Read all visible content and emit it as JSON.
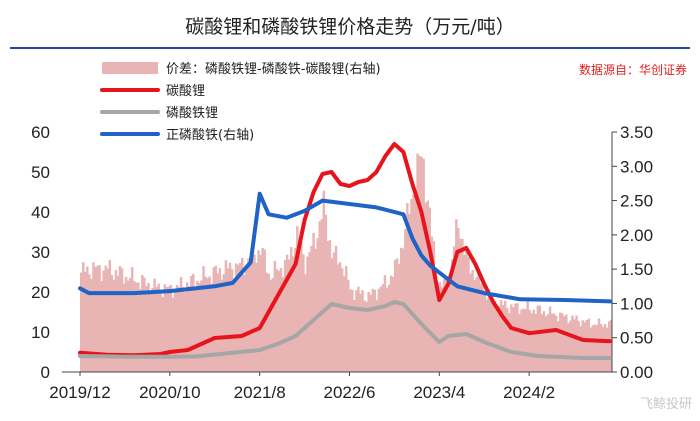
{
  "chart_data": {
    "type": "line",
    "title": "碳酸锂和磷酸铁锂价格走势（万元/吨）",
    "source": "数据源自：华创证券",
    "watermark": "飞鲸投研",
    "x_ticks": [
      "2019/12",
      "2020/10",
      "2021/8",
      "2022/6",
      "2023/4",
      "2024/2"
    ],
    "y_left": {
      "range": [
        0,
        60
      ],
      "ticks": [
        "0",
        "10",
        "20",
        "30",
        "40",
        "50",
        "60"
      ]
    },
    "y_right": {
      "range": [
        0,
        3.5
      ],
      "ticks": [
        "0.00",
        "0.50",
        "1.00",
        "1.50",
        "2.00",
        "2.50",
        "3.00",
        "3.50"
      ]
    },
    "legend": [
      {
        "label": "价差：磷酸铁锂-磷酸铁-碳酸锂(右轴)",
        "color": "#e8b4b4",
        "kind": "area"
      },
      {
        "label": "碳酸锂",
        "color": "#e8141c",
        "kind": "line"
      },
      {
        "label": "磷酸铁锂",
        "color": "#a6a6a6",
        "kind": "line"
      },
      {
        "label": "正磷酸铁(右轴)",
        "color": "#1f63c6",
        "kind": "line"
      }
    ],
    "series": [
      {
        "name": "碳酸锂",
        "axis": "left",
        "color": "#e8141c",
        "points": [
          [
            "2019-12",
            4.8
          ],
          [
            "2020-03",
            4.3
          ],
          [
            "2020-06",
            4.2
          ],
          [
            "2020-09",
            4.5
          ],
          [
            "2020-10",
            5.0
          ],
          [
            "2020-12",
            5.5
          ],
          [
            "2021-03",
            8.5
          ],
          [
            "2021-06",
            9.0
          ],
          [
            "2021-08",
            11.0
          ],
          [
            "2021-10",
            19.0
          ],
          [
            "2021-12",
            27.0
          ],
          [
            "2022-01",
            38.0
          ],
          [
            "2022-02",
            45.0
          ],
          [
            "2022-03",
            49.5
          ],
          [
            "2022-04",
            50.0
          ],
          [
            "2022-05",
            47.0
          ],
          [
            "2022-06",
            46.5
          ],
          [
            "2022-07",
            47.5
          ],
          [
            "2022-08",
            48.0
          ],
          [
            "2022-09",
            50.0
          ],
          [
            "2022-10",
            54.0
          ],
          [
            "2022-11",
            57.0
          ],
          [
            "2022-12",
            55.0
          ],
          [
            "2023-01",
            47.0
          ],
          [
            "2023-02",
            40.0
          ],
          [
            "2023-03",
            30.0
          ],
          [
            "2023-04",
            18.0
          ],
          [
            "2023-05",
            22.0
          ],
          [
            "2023-06",
            30.0
          ],
          [
            "2023-07",
            31.0
          ],
          [
            "2023-08",
            27.0
          ],
          [
            "2023-09",
            22.0
          ],
          [
            "2023-10",
            17.5
          ],
          [
            "2023-11",
            14.0
          ],
          [
            "2023-12",
            11.0
          ],
          [
            "2024-02",
            9.7
          ],
          [
            "2024-05",
            10.5
          ],
          [
            "2024-08",
            8.0
          ],
          [
            "2024-11",
            7.7
          ]
        ]
      },
      {
        "name": "磷酸铁锂",
        "axis": "left",
        "color": "#a6a6a6",
        "points": [
          [
            "2019-12",
            4.0
          ],
          [
            "2020-06",
            3.8
          ],
          [
            "2020-10",
            3.8
          ],
          [
            "2021-01",
            3.9
          ],
          [
            "2021-05",
            4.8
          ],
          [
            "2021-08",
            5.5
          ],
          [
            "2021-10",
            7.0
          ],
          [
            "2021-12",
            9.0
          ],
          [
            "2022-02",
            13.0
          ],
          [
            "2022-04",
            17.0
          ],
          [
            "2022-06",
            16.0
          ],
          [
            "2022-08",
            15.5
          ],
          [
            "2022-10",
            16.5
          ],
          [
            "2022-11",
            17.5
          ],
          [
            "2022-12",
            17.0
          ],
          [
            "2023-01",
            14.5
          ],
          [
            "2023-02",
            12.0
          ],
          [
            "2023-04",
            7.5
          ],
          [
            "2023-05",
            9.0
          ],
          [
            "2023-07",
            9.5
          ],
          [
            "2023-09",
            7.5
          ],
          [
            "2023-12",
            5.0
          ],
          [
            "2024-03",
            4.0
          ],
          [
            "2024-08",
            3.5
          ],
          [
            "2024-11",
            3.5
          ]
        ]
      },
      {
        "name": "正磷酸铁(右轴)",
        "axis": "right",
        "color": "#1f63c6",
        "points": [
          [
            "2019-12",
            1.22
          ],
          [
            "2020-01",
            1.15
          ],
          [
            "2020-06",
            1.15
          ],
          [
            "2020-10",
            1.18
          ],
          [
            "2021-03",
            1.25
          ],
          [
            "2021-05",
            1.3
          ],
          [
            "2021-06",
            1.45
          ],
          [
            "2021-07",
            1.6
          ],
          [
            "2021-08",
            2.6
          ],
          [
            "2021-09",
            2.3
          ],
          [
            "2021-11",
            2.25
          ],
          [
            "2022-01",
            2.35
          ],
          [
            "2022-03",
            2.5
          ],
          [
            "2022-06",
            2.45
          ],
          [
            "2022-09",
            2.4
          ],
          [
            "2022-12",
            2.3
          ],
          [
            "2023-01",
            1.95
          ],
          [
            "2023-02",
            1.7
          ],
          [
            "2023-03",
            1.55
          ],
          [
            "2023-04",
            1.45
          ],
          [
            "2023-06",
            1.25
          ],
          [
            "2023-09",
            1.15
          ],
          [
            "2024-01",
            1.06
          ],
          [
            "2024-06",
            1.05
          ],
          [
            "2024-11",
            1.03
          ]
        ]
      },
      {
        "name": "价差：磷酸铁锂-磷酸铁-碳酸锂(右轴)",
        "axis": "right",
        "color": "#e8b4b4",
        "kind": "area",
        "points": [
          [
            "2019-12",
            1.45
          ],
          [
            "2020-01",
            1.5
          ],
          [
            "2020-03",
            1.5
          ],
          [
            "2020-05",
            1.4
          ],
          [
            "2020-08",
            1.25
          ],
          [
            "2020-10",
            1.2
          ],
          [
            "2021-01",
            1.35
          ],
          [
            "2021-04",
            1.5
          ],
          [
            "2021-06",
            1.55
          ],
          [
            "2021-08",
            1.8
          ],
          [
            "2021-09",
            1.4
          ],
          [
            "2021-11",
            1.6
          ],
          [
            "2021-12",
            2.0
          ],
          [
            "2022-01",
            1.6
          ],
          [
            "2022-02",
            1.9
          ],
          [
            "2022-03",
            2.4
          ],
          [
            "2022-04",
            1.7
          ],
          [
            "2022-05",
            1.6
          ],
          [
            "2022-06",
            1.2
          ],
          [
            "2022-08",
            1.1
          ],
          [
            "2022-10",
            1.3
          ],
          [
            "2022-11",
            1.5
          ],
          [
            "2022-12",
            2.0
          ],
          [
            "2023-01",
            2.7
          ],
          [
            "2023-02",
            3.2
          ],
          [
            "2023-03",
            2.0
          ],
          [
            "2023-04",
            1.2
          ],
          [
            "2023-05",
            1.4
          ],
          [
            "2023-06",
            2.2
          ],
          [
            "2023-07",
            1.6
          ],
          [
            "2023-08",
            1.4
          ],
          [
            "2023-09",
            1.2
          ],
          [
            "2023-10",
            1.0
          ],
          [
            "2023-12",
            0.95
          ],
          [
            "2024-03",
            0.9
          ],
          [
            "2024-06",
            0.8
          ],
          [
            "2024-09",
            0.7
          ],
          [
            "2024-11",
            0.7
          ]
        ]
      }
    ]
  }
}
